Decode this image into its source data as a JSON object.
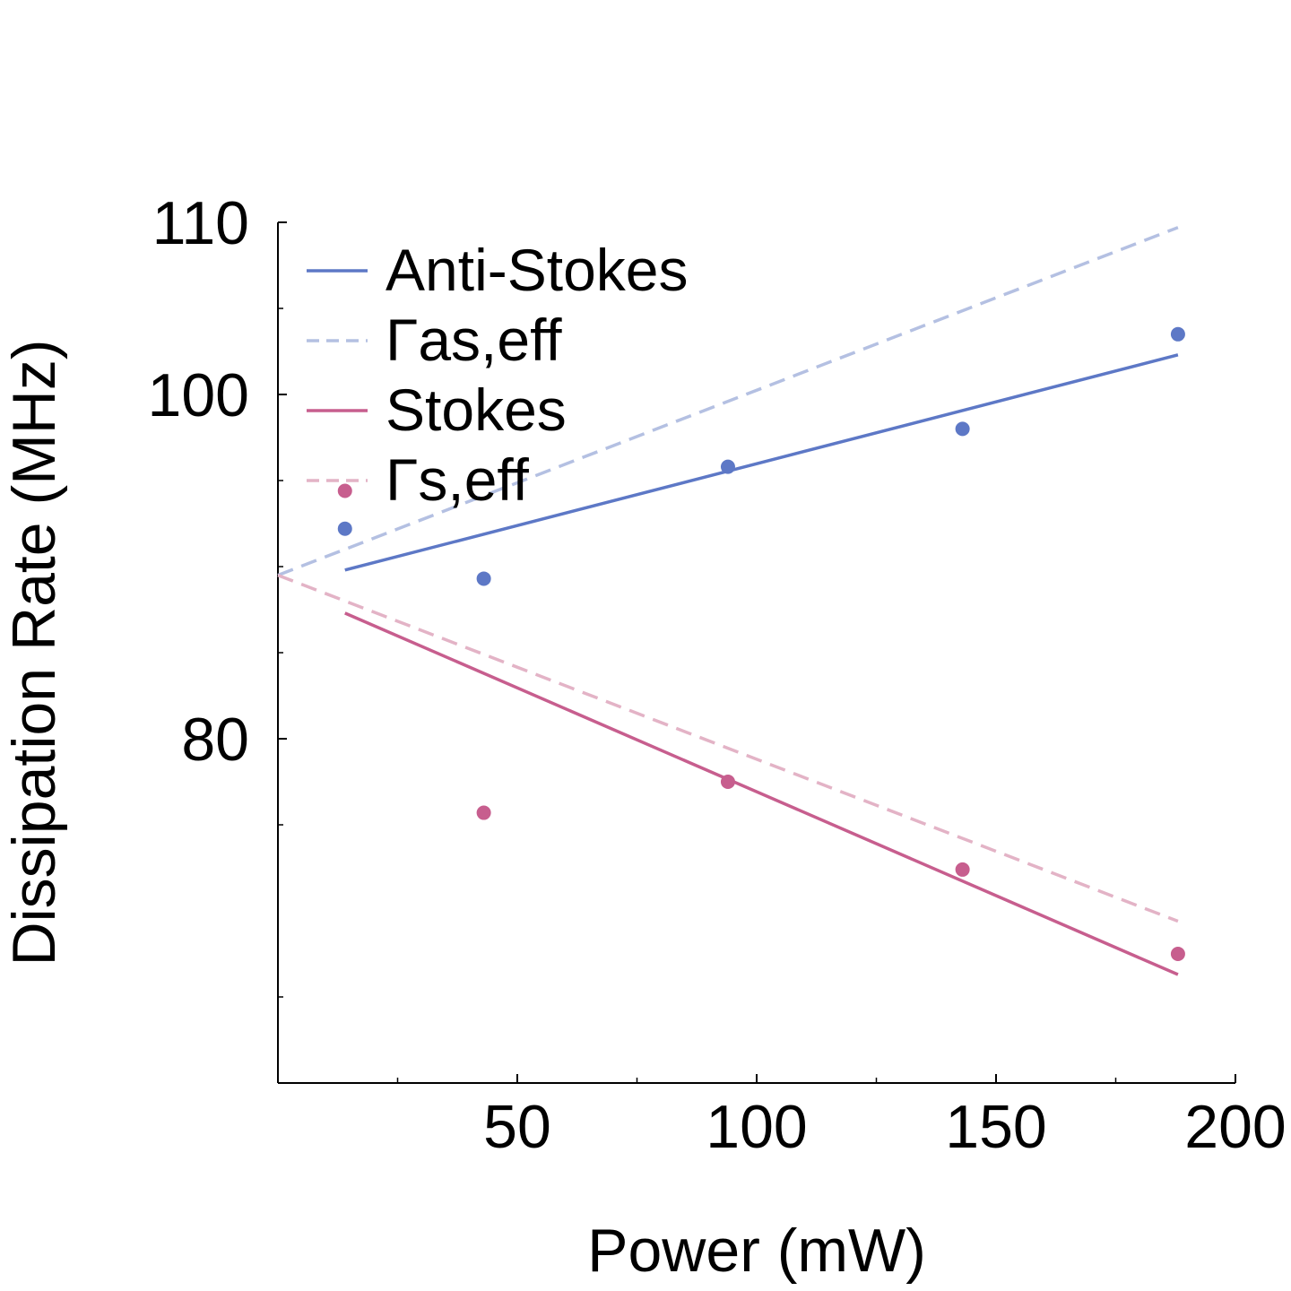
{
  "chart_data": {
    "type": "scatter",
    "xlabel": "Power (mW)",
    "ylabel": "Dissipation Rate (MHz)",
    "xlim": [
      0,
      200
    ],
    "ylim": [
      60,
      110
    ],
    "x_ticks": [
      50,
      100,
      150,
      200
    ],
    "y_ticks": [
      {
        "value": 80,
        "label": "80"
      },
      {
        "value": 100,
        "label": "100"
      },
      {
        "value": 110,
        "label": "110"
      }
    ],
    "grid": false,
    "legend_position": "top-left",
    "series": [
      {
        "name": "Anti-Stokes",
        "kind": "points+fit",
        "color": "#5d78c6",
        "points": [
          [
            14,
            92.2
          ],
          [
            43,
            89.3
          ],
          [
            94,
            95.8
          ],
          [
            143,
            98.0
          ],
          [
            188,
            103.5
          ]
        ],
        "fit": [
          [
            14,
            89.8
          ],
          [
            188,
            102.3
          ]
        ]
      },
      {
        "name": "Γas,eff",
        "kind": "dashed-line",
        "color": "#b4c0e2",
        "fit": [
          [
            0,
            89.5
          ],
          [
            188,
            109.7
          ]
        ]
      },
      {
        "name": "Stokes",
        "kind": "points+fit",
        "color": "#c75e8e",
        "points": [
          [
            14,
            94.4
          ],
          [
            43,
            75.7
          ],
          [
            94,
            77.5
          ],
          [
            143,
            72.4
          ],
          [
            188,
            67.5
          ]
        ],
        "fit": [
          [
            14,
            87.3
          ],
          [
            188,
            66.3
          ]
        ]
      },
      {
        "name": "Γs,eff",
        "kind": "dashed-line",
        "color": "#e3b3c6",
        "fit": [
          [
            0,
            89.5
          ],
          [
            188,
            69.4
          ]
        ]
      }
    ]
  }
}
